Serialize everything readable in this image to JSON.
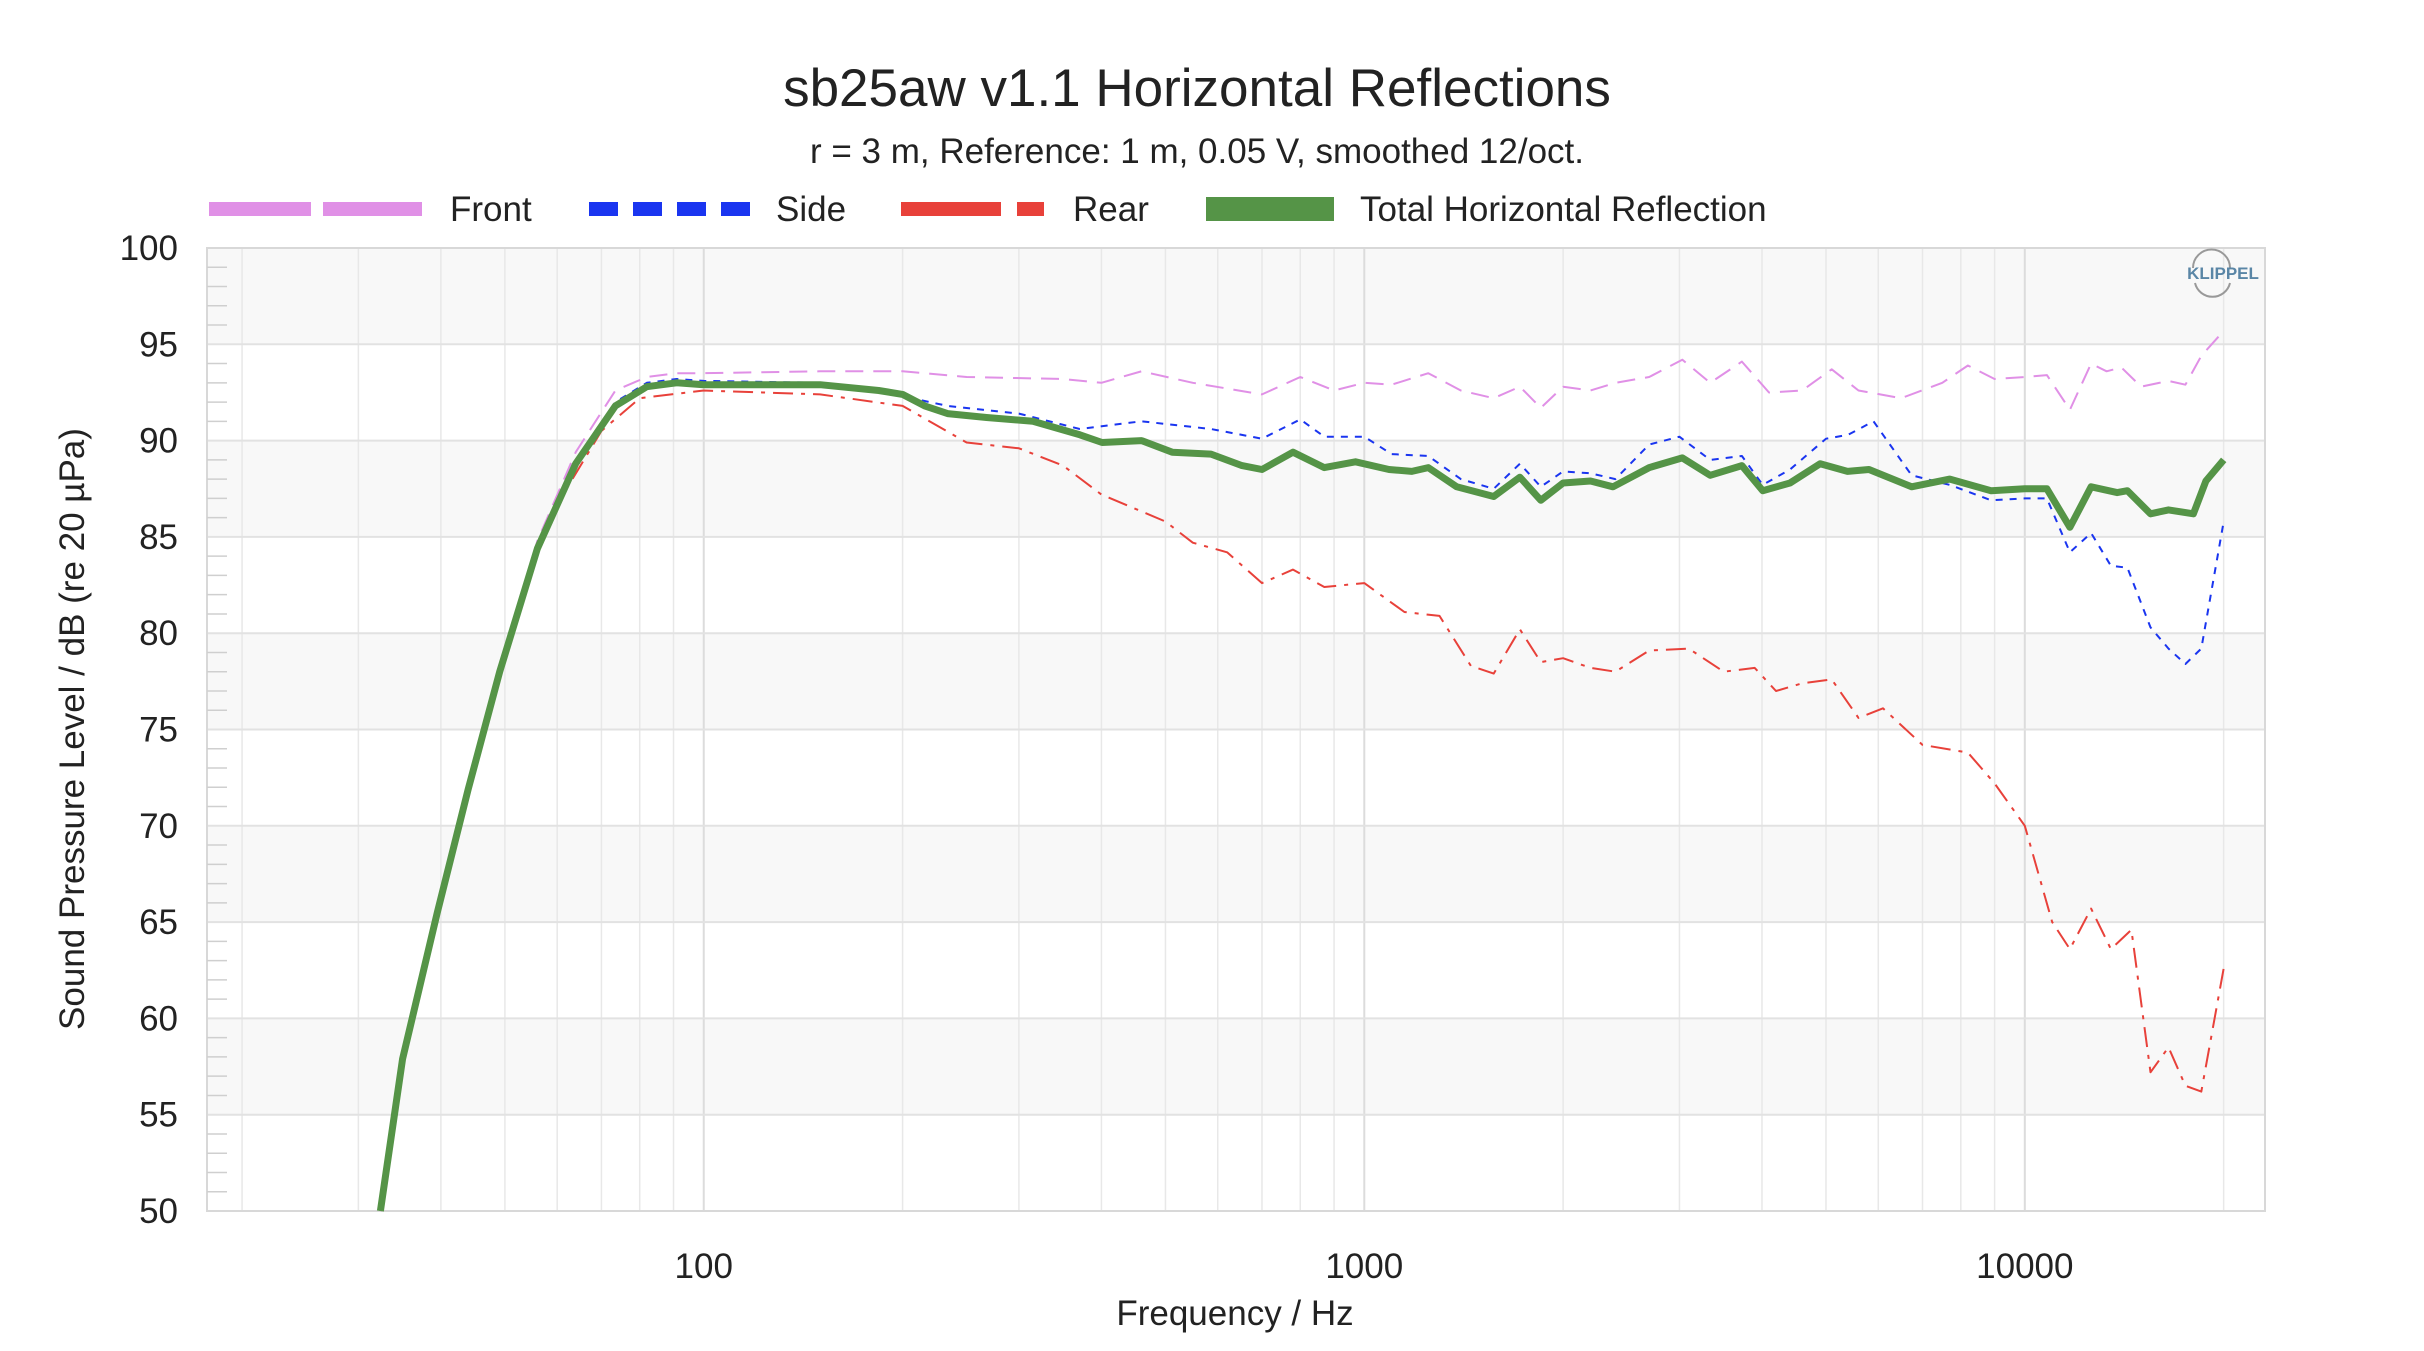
{
  "chart_data": {
    "type": "line",
    "title": "sb25aw v1.1 Horizontal Reflections",
    "subtitle": "r = 3 m,  Reference: 1 m, 0.05 V, smoothed 12/oct.",
    "xlabel": "Frequency / Hz",
    "ylabel": "Sound Pressure Level / dB (re 20 µPa)",
    "xscale": "log",
    "xlim": [
      17.7,
      23100
    ],
    "ylim": [
      50,
      100
    ],
    "grid": true,
    "legend_position": "top",
    "watermark": "KLIPPEL",
    "xticks": [
      {
        "value": 100,
        "label": "100"
      },
      {
        "value": 1000,
        "label": "1000"
      },
      {
        "value": 10000,
        "label": "10000"
      }
    ],
    "yticks": [
      {
        "value": 100,
        "label": "100"
      },
      {
        "value": 95,
        "label": "95"
      },
      {
        "value": 90,
        "label": "90"
      },
      {
        "value": 85,
        "label": "85"
      },
      {
        "value": 80,
        "label": "80"
      },
      {
        "value": 75,
        "label": "75"
      },
      {
        "value": 70,
        "label": "70"
      },
      {
        "value": 65,
        "label": "65"
      },
      {
        "value": 60,
        "label": "60"
      },
      {
        "value": 55,
        "label": "55"
      },
      {
        "value": 50,
        "label": "50"
      }
    ],
    "series": [
      {
        "name": "Front",
        "color": "#e090e6",
        "style": "dashed",
        "x": [
          32.4,
          35,
          39.5,
          44,
          49.1,
          56,
          64,
          73.5,
          82,
          91,
          100,
          150,
          200,
          250,
          350,
          400,
          460,
          550,
          700,
          800,
          900,
          1000,
          1100,
          1250,
          1400,
          1570,
          1720,
          1850,
          2000,
          2200,
          2400,
          2700,
          3030,
          3340,
          3730,
          4100,
          4600,
          5100,
          5600,
          6500,
          7500,
          8200,
          9000,
          10000,
          10800,
          11700,
          12600,
          13300,
          14000,
          15000,
          16500,
          17500,
          18500,
          20000
        ],
        "y": [
          50,
          57.9,
          65.5,
          71.9,
          78.2,
          84.8,
          89.4,
          92.6,
          93.3,
          93.5,
          93.5,
          93.6,
          93.6,
          93.3,
          93.2,
          93,
          93.6,
          93,
          92.4,
          93.3,
          92.6,
          93,
          92.9,
          93.5,
          92.6,
          92.2,
          92.8,
          91.7,
          92.8,
          92.6,
          93,
          93.3,
          94.2,
          93,
          94.1,
          92.5,
          92.6,
          93.7,
          92.6,
          92.2,
          93,
          93.9,
          93.2,
          93.3,
          93.4,
          91.6,
          94,
          93.6,
          93.8,
          92.8,
          93.1,
          92.9,
          94.4,
          95.7
        ]
      },
      {
        "name": "Side",
        "color": "#1a35f0",
        "style": "dotted",
        "x": [
          32.4,
          35,
          39.5,
          44,
          49.1,
          56,
          64,
          73.5,
          82,
          91,
          100,
          150,
          200,
          234,
          300,
          371,
          460,
          586,
          700,
          800,
          870,
          1000,
          1100,
          1250,
          1400,
          1570,
          1720,
          1850,
          2000,
          2200,
          2400,
          2700,
          3000,
          3340,
          3730,
          4010,
          4410,
          5000,
          5400,
          5900,
          6740,
          7700,
          8890,
          10000,
          10800,
          11700,
          12600,
          13500,
          14300,
          15500,
          16500,
          17500,
          18500,
          20000
        ],
        "y": [
          50,
          57.9,
          65.5,
          71.9,
          78,
          84.5,
          88.9,
          92,
          93,
          93.2,
          93.1,
          93,
          92.3,
          91.8,
          91.4,
          90.6,
          91,
          90.6,
          90.1,
          91.1,
          90.2,
          90.2,
          89.3,
          89.2,
          88,
          87.5,
          88.8,
          87.6,
          88.4,
          88.3,
          88,
          89.8,
          90.2,
          89,
          89.2,
          87.7,
          88.5,
          90.1,
          90.3,
          91,
          88.2,
          87.7,
          86.9,
          87,
          87,
          84.2,
          85.2,
          83.5,
          83.4,
          80.3,
          79.2,
          78.4,
          79.2,
          85.8
        ]
      },
      {
        "name": "Rear",
        "color": "#e8413a",
        "style": "dashdot",
        "x": [
          32.4,
          35,
          39.5,
          44,
          49.1,
          56,
          60,
          70,
          80,
          100,
          150,
          200,
          250,
          300,
          350,
          400,
          500,
          550,
          620,
          700,
          780,
          870,
          1000,
          1150,
          1300,
          1450,
          1570,
          1720,
          1850,
          2000,
          2200,
          2400,
          2700,
          3100,
          3500,
          3900,
          4200,
          4600,
          5100,
          5600,
          6100,
          7000,
          8200,
          9000,
          10000,
          11000,
          11700,
          12600,
          13500,
          14500,
          15500,
          16500,
          17500,
          18500,
          20000
        ],
        "y": [
          50,
          57.9,
          65.5,
          71.9,
          78,
          84.3,
          86.7,
          90.5,
          92.2,
          92.6,
          92.4,
          91.8,
          89.9,
          89.6,
          88.7,
          87.2,
          85.8,
          84.7,
          84.2,
          82.6,
          83.3,
          82.4,
          82.6,
          81.1,
          80.9,
          78.3,
          77.9,
          80.2,
          78.5,
          78.7,
          78.2,
          78,
          79.1,
          79.2,
          78,
          78.2,
          77,
          77.4,
          77.6,
          75.6,
          76.1,
          74.2,
          73.8,
          72.2,
          70,
          65,
          63.6,
          65.7,
          63.6,
          64.6,
          57.2,
          58.5,
          56.5,
          56.2,
          62.6
        ]
      },
      {
        "name": "Total Horizontal Reflection",
        "color": "#559447",
        "style": "solid",
        "x": [
          32.4,
          35,
          39.5,
          44,
          49.1,
          56,
          64,
          73.5,
          82,
          91,
          100,
          150,
          184,
          200,
          216,
          234,
          268,
          315,
          371,
          401,
          460,
          512,
          586,
          653,
          700,
          780,
          870,
          970,
          1090,
          1180,
          1250,
          1380,
          1570,
          1720,
          1850,
          2000,
          2200,
          2380,
          2700,
          3030,
          3340,
          3730,
          4010,
          4410,
          4900,
          5390,
          5810,
          6740,
          7700,
          8890,
          10000,
          10800,
          11700,
          12600,
          13800,
          14300,
          15500,
          16500,
          18000,
          18800,
          20000
        ],
        "y": [
          50,
          57.9,
          65.5,
          71.9,
          78,
          84.4,
          88.8,
          91.8,
          92.8,
          93,
          92.9,
          92.9,
          92.6,
          92.4,
          91.8,
          91.4,
          91.2,
          91,
          90.3,
          89.9,
          90,
          89.4,
          89.3,
          88.7,
          88.5,
          89.4,
          88.6,
          88.9,
          88.5,
          88.4,
          88.6,
          87.6,
          87.1,
          88.1,
          86.9,
          87.8,
          87.9,
          87.6,
          88.6,
          89.1,
          88.2,
          88.7,
          87.4,
          87.8,
          88.8,
          88.4,
          88.5,
          87.6,
          88,
          87.4,
          87.5,
          87.5,
          85.5,
          87.6,
          87.3,
          87.4,
          86.2,
          86.4,
          86.2,
          87.9,
          89
        ]
      }
    ]
  }
}
